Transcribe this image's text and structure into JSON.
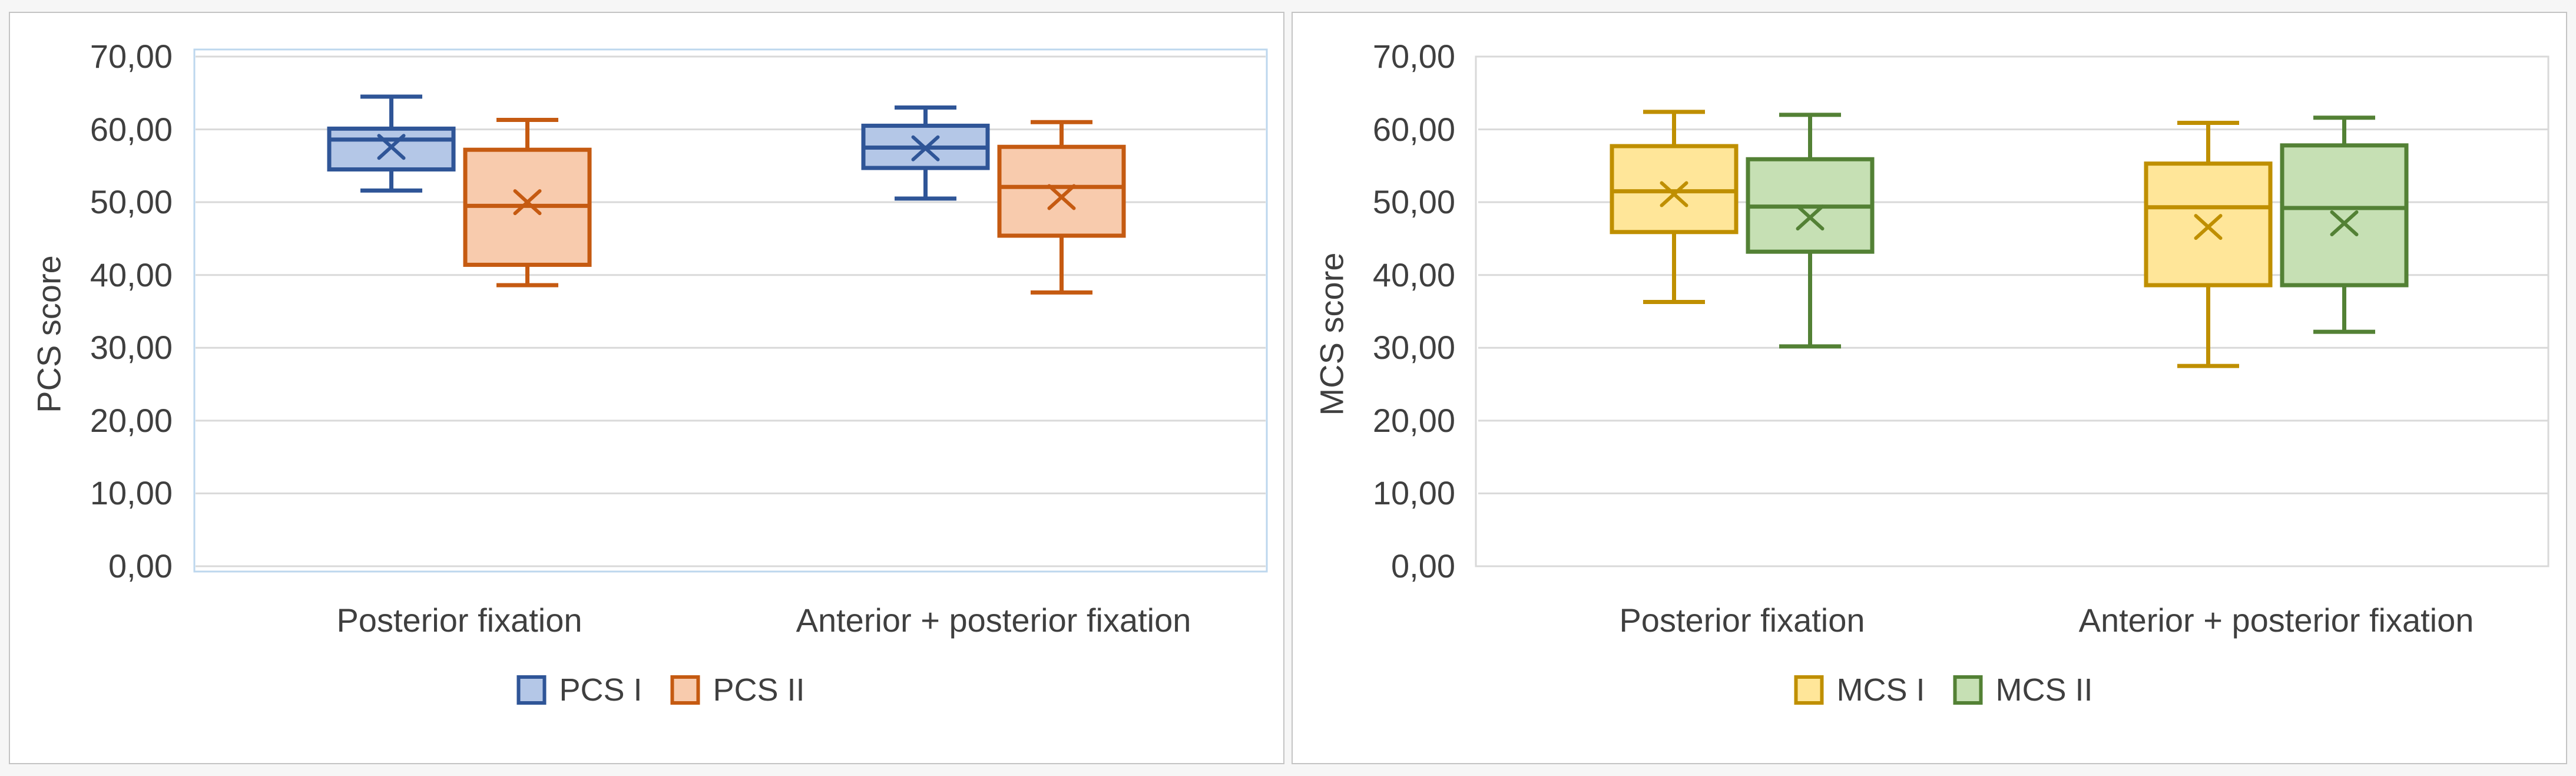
{
  "page": {
    "background": "#f6f6f6",
    "panel_background": "#ffffff",
    "panel_border_color": "#c4c4c4",
    "text_color": "#3f3f3f",
    "gridline_color": "#d9d9d9"
  },
  "chart_data": [
    {
      "type": "boxplot",
      "ylabel": "PCS score",
      "xlabel": "",
      "ylim": [
        0,
        70
      ],
      "ytick_step": 10,
      "ytick_labels": [
        "0,00",
        "10,00",
        "20,00",
        "30,00",
        "40,00",
        "50,00",
        "60,00",
        "70,00"
      ],
      "grid": true,
      "legend_position": "bottom",
      "plot_border_color": "#bdd7ee",
      "categories": [
        "Posterior fixation",
        "Anterior + posterior fixation"
      ],
      "series": [
        {
          "name": "PCS I",
          "fill_color": "#b4c7e7",
          "border_color": "#2f5597",
          "boxes": [
            {
              "category": "Posterior fixation",
              "whisker_low": 51.6,
              "q1": 54.5,
              "median": 58.6,
              "q3": 60.1,
              "whisker_high": 64.5,
              "mean": 57.6
            },
            {
              "category": "Anterior + posterior fixation",
              "whisker_low": 50.5,
              "q1": 54.7,
              "median": 57.5,
              "q3": 60.5,
              "whisker_high": 63.0,
              "mean": 57.4
            }
          ]
        },
        {
          "name": "PCS II",
          "fill_color": "#f8cbad",
          "border_color": "#c55a11",
          "boxes": [
            {
              "category": "Posterior fixation",
              "whisker_low": 38.6,
              "q1": 41.4,
              "median": 49.5,
              "q3": 57.2,
              "whisker_high": 61.3,
              "mean": 50.0
            },
            {
              "category": "Anterior + posterior fixation",
              "whisker_low": 37.6,
              "q1": 45.4,
              "median": 52.1,
              "q3": 57.6,
              "whisker_high": 61.0,
              "mean": 50.7
            }
          ]
        }
      ]
    },
    {
      "type": "boxplot",
      "ylabel": "MCS score",
      "xlabel": "",
      "ylim": [
        0,
        70
      ],
      "ytick_step": 10,
      "ytick_labels": [
        "0,00",
        "10,00",
        "20,00",
        "30,00",
        "40,00",
        "50,00",
        "60,00",
        "70,00"
      ],
      "grid": true,
      "legend_position": "bottom",
      "plot_border_color": "#d9d9d9",
      "categories": [
        "Posterior fixation",
        "Anterior + posterior fixation"
      ],
      "series": [
        {
          "name": "MCS I",
          "fill_color": "#ffe699",
          "border_color": "#bf8f00",
          "boxes": [
            {
              "category": "Posterior fixation",
              "whisker_low": 36.3,
              "q1": 45.9,
              "median": 51.5,
              "q3": 57.7,
              "whisker_high": 62.4,
              "mean": 51.1
            },
            {
              "category": "Anterior + posterior fixation",
              "whisker_low": 27.5,
              "q1": 38.6,
              "median": 49.3,
              "q3": 55.3,
              "whisker_high": 60.9,
              "mean": 46.6
            }
          ]
        },
        {
          "name": "MCS II",
          "fill_color": "#c6e0b4",
          "border_color": "#538135",
          "boxes": [
            {
              "category": "Posterior fixation",
              "whisker_low": 30.2,
              "q1": 43.2,
              "median": 49.4,
              "q3": 55.9,
              "whisker_high": 62.0,
              "mean": 47.9
            },
            {
              "category": "Anterior + posterior fixation",
              "whisker_low": 32.2,
              "q1": 38.6,
              "median": 49.2,
              "q3": 57.8,
              "whisker_high": 61.6,
              "mean": 47.1
            }
          ]
        }
      ]
    }
  ]
}
